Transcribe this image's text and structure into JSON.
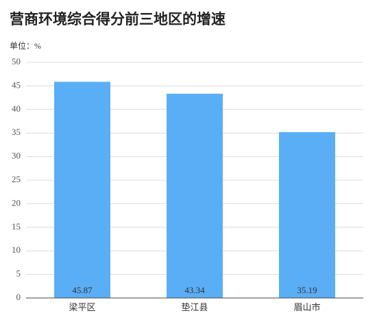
{
  "chart_data": {
    "type": "bar",
    "title": "营商环境综合得分前三地区的增速",
    "unit_label": "单位：%",
    "categories": [
      "梁平区",
      "垫江县",
      "眉山市"
    ],
    "values": [
      45.87,
      43.34,
      35.19
    ],
    "color": "#5aaef5",
    "ylim": [
      0,
      50
    ],
    "yticks": [
      0,
      5,
      10,
      15,
      20,
      25,
      30,
      35,
      40,
      45,
      50
    ],
    "grid": true
  }
}
